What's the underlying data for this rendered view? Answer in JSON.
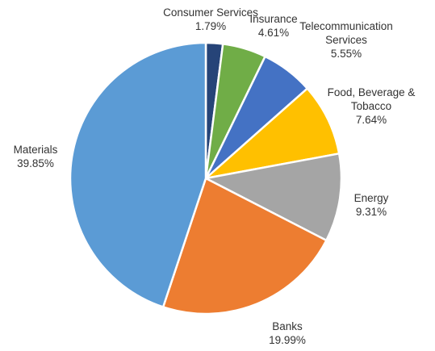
{
  "chart_data": {
    "type": "pie",
    "title": "",
    "start_angle_deg": 0,
    "direction": "clockwise",
    "slices": [
      {
        "label": [
          "Consumer Services"
        ],
        "value_label": "1.79%",
        "value": 1.79,
        "color": "#264478"
      },
      {
        "label": [
          "Insurance"
        ],
        "value_label": "4.61%",
        "value": 4.61,
        "color": "#70AD47"
      },
      {
        "label": [
          "Telecommunication",
          "Services"
        ],
        "value_label": "5.55%",
        "value": 5.55,
        "color": "#4472C4"
      },
      {
        "label": [
          "Food, Beverage &",
          "Tobacco"
        ],
        "value_label": "7.64%",
        "value": 7.64,
        "color": "#FFC000"
      },
      {
        "label": [
          "Energy"
        ],
        "value_label": "9.31%",
        "value": 9.31,
        "color": "#A5A5A5"
      },
      {
        "label": [
          "Banks"
        ],
        "value_label": "19.99%",
        "value": 19.99,
        "color": "#ED7D31"
      },
      {
        "label": [
          "Materials"
        ],
        "value_label": "39.85%",
        "value": 39.85,
        "color": "#5B9BD5"
      }
    ]
  }
}
